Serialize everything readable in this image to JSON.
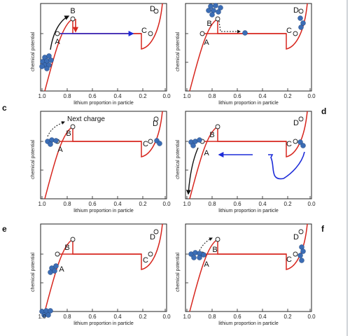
{
  "figure": {
    "y_axis_label": "chemical potential",
    "x_axis_label": "lithium proportion in particle",
    "x_ticks": [
      "1.0",
      "0.8",
      "0.6",
      "0.4",
      "0.2",
      "0.0"
    ],
    "point_labels": [
      "A",
      "B",
      "C",
      "D"
    ],
    "panel_letters": [
      "",
      "",
      "c",
      "d",
      "e",
      "f"
    ],
    "annotation_next_charge": "Next charge"
  },
  "colors": {
    "curve": "#d7261e",
    "arrow_blue": "#1c2bd8",
    "arrow_black": "#111111",
    "particle": "#3b6db5",
    "particle_stroke": "#24457a",
    "frame": "#222222",
    "page_border": "#cfd3d8"
  },
  "panels": [
    {
      "id": "a",
      "particles_at": "A",
      "arrows": [
        "black-up-to-B",
        "red-down-from-B",
        "blue-right-to-C"
      ]
    },
    {
      "id": "b",
      "particles_at": "B-and-C",
      "arrows": [
        "black-dashed-from-B-to-right"
      ]
    },
    {
      "id": "c",
      "particles_at": "A-and-D",
      "arrows": [
        "black-dashed-next-charge"
      ]
    },
    {
      "id": "d",
      "particles_at": "A-and-D",
      "arrows": [
        "black-down-from-A",
        "blue-left-from-D"
      ]
    },
    {
      "id": "e",
      "particles_at": "A-and-bottom",
      "arrows": [
        "black-dashed-from-A"
      ]
    },
    {
      "id": "f",
      "particles_at": "A-and-D",
      "arrows": [
        "black-dashed-from-A"
      ]
    }
  ]
}
